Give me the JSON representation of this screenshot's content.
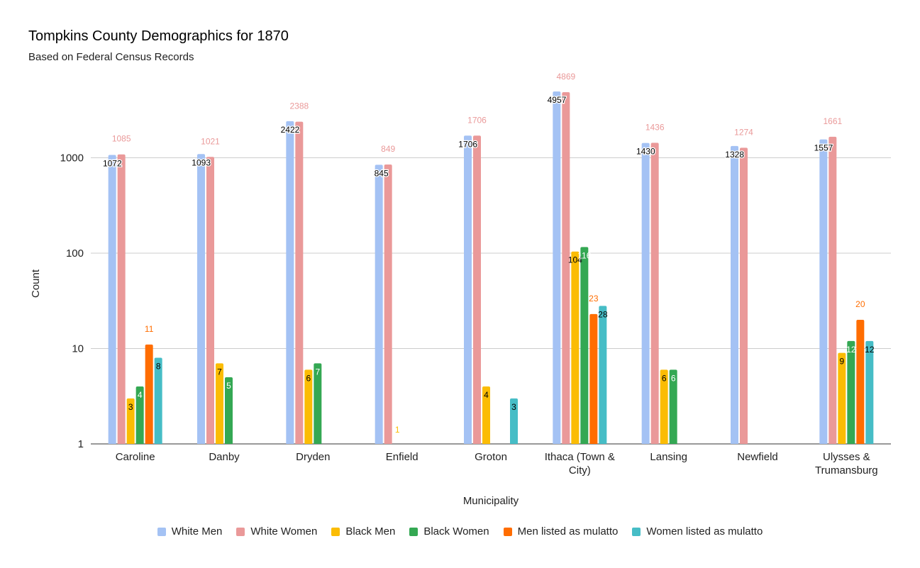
{
  "chart_data": {
    "type": "bar",
    "title": "Tompkins County Demographics for 1870",
    "subtitle": "Based on Federal Census Records",
    "xlabel": "Municipality",
    "ylabel": "Count",
    "yscale": "log",
    "ylim": [
      1,
      10000
    ],
    "yticks": [
      1,
      10,
      100,
      1000
    ],
    "yticklabels": [
      "1",
      "10",
      "100",
      "1000"
    ],
    "grid": true,
    "legend_position": "bottom",
    "categories": [
      [
        "Caroline"
      ],
      [
        "Danby"
      ],
      [
        "Dryden"
      ],
      [
        "Enfield"
      ],
      [
        "Groton"
      ],
      [
        "Ithaca (Town &",
        "City)"
      ],
      [
        "Lansing"
      ],
      [
        "Newfield"
      ],
      [
        "Ulysses &",
        "Trumansburg"
      ]
    ],
    "series": [
      {
        "name": "White Men",
        "color": "#a4c2f4",
        "label_color": "#000000",
        "label_inside": true,
        "values": [
          1072,
          1093,
          2422,
          845,
          1706,
          4957,
          1430,
          1328,
          1557
        ]
      },
      {
        "name": "White Women",
        "color": "#ea9999",
        "label_color": "#ea9999",
        "label_inside": false,
        "values": [
          1085,
          1021,
          2388,
          849,
          1706,
          4869,
          1436,
          1274,
          1661
        ]
      },
      {
        "name": "Black Men",
        "color": "#fbbc04",
        "label_color": "#000000",
        "label_inside": true,
        "values": [
          3,
          7,
          6,
          1,
          4,
          104,
          6,
          null,
          9
        ]
      },
      {
        "name": "Black Women",
        "color": "#34a853",
        "label_color": "#ffffff",
        "label_inside": true,
        "values": [
          4,
          5,
          7,
          null,
          null,
          116,
          6,
          null,
          12
        ]
      },
      {
        "name": "Men listed as mulatto",
        "color": "#ff6d01",
        "label_color": "#ff6d01",
        "label_inside": false,
        "values": [
          11,
          null,
          null,
          null,
          null,
          23,
          null,
          null,
          20
        ]
      },
      {
        "name": "Women listed as mulatto",
        "color": "#46bdc6",
        "label_color": "#000000",
        "label_inside": true,
        "values": [
          8,
          null,
          null,
          null,
          3,
          28,
          null,
          null,
          12
        ]
      }
    ]
  }
}
